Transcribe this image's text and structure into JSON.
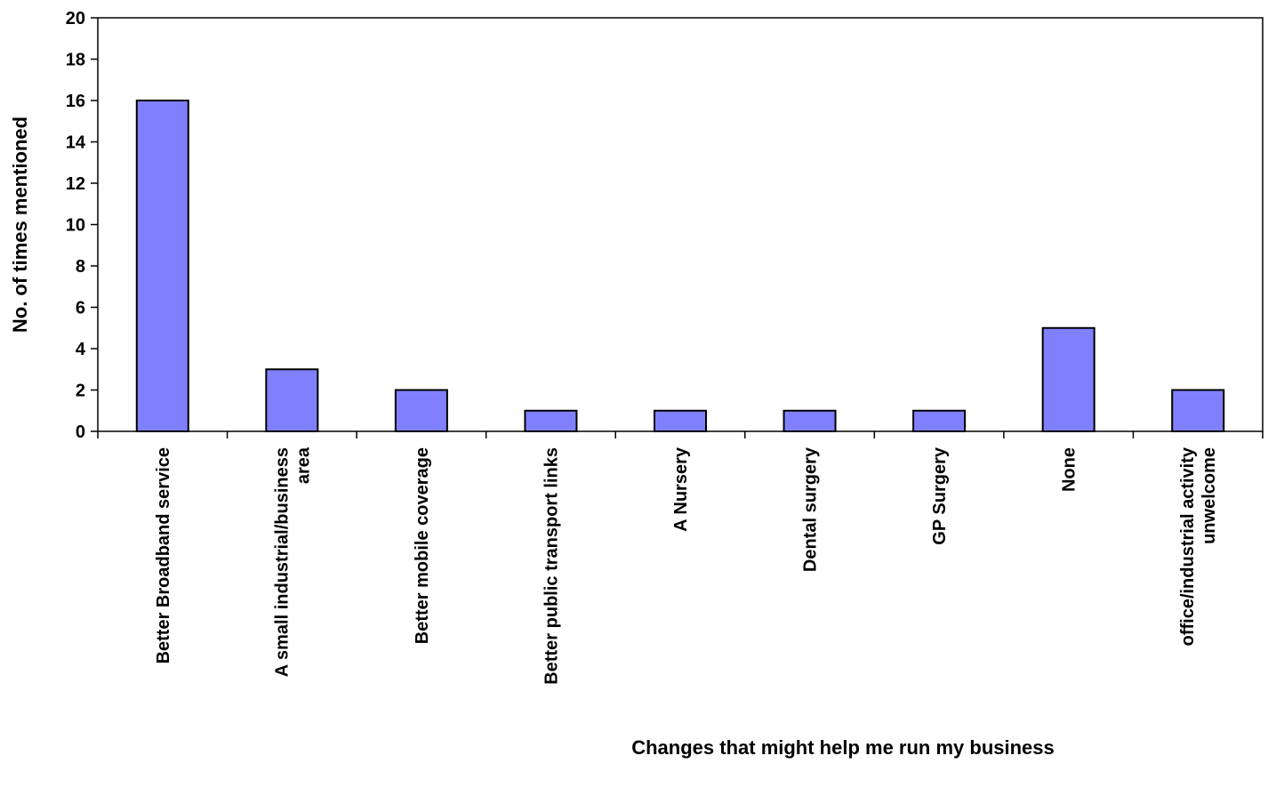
{
  "chart_data": {
    "type": "bar",
    "title": "",
    "xlabel": "Changes that might help me run my business",
    "ylabel": "No. of times mentioned",
    "ylim": [
      0,
      20
    ],
    "yticks": [
      "0",
      "2",
      "4",
      "6",
      "8",
      "10",
      "12",
      "14",
      "16",
      "18",
      "20"
    ],
    "categories": [
      [
        "Better Broadband service"
      ],
      [
        "A small industrial/business",
        "area"
      ],
      [
        "Better mobile coverage"
      ],
      [
        "Better public transport links"
      ],
      [
        "A Nursery"
      ],
      [
        "Dental surgery"
      ],
      [
        "GP Surgery"
      ],
      [
        "None"
      ],
      [
        "office/industrial activity",
        "unwelcome"
      ]
    ],
    "values": [
      16,
      3,
      2,
      1,
      1,
      1,
      1,
      5,
      2
    ],
    "grid": false,
    "legend": "none",
    "bar_color": "#8080ff",
    "bar_edge_color": "#000000"
  }
}
